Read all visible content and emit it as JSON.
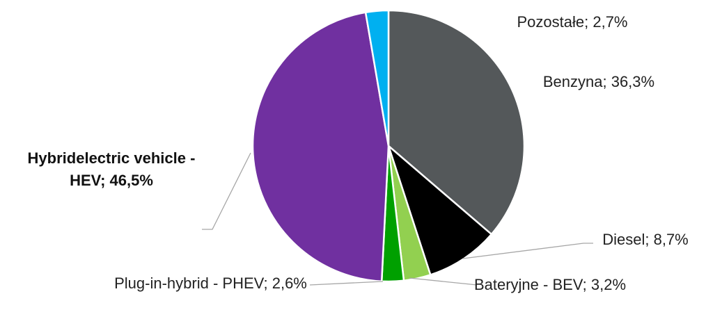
{
  "chart_data": {
    "type": "pie",
    "values": [
      36.3,
      8.7,
      3.2,
      2.6,
      46.5,
      2.7
    ],
    "value_labels": [
      "Benzyna; 36,3%",
      "Diesel; 8,7%",
      "Bateryjne - BEV; 3,2%",
      "Plug-in-hybrid - PHEV; 2,6%",
      "Hybridelectric vehicle - HEV; 46,5%",
      "Pozostałe; 2,7%"
    ],
    "colors": [
      "#54585a",
      "#000000",
      "#92d050",
      "#00a000",
      "#7030a0",
      "#00b0f0"
    ],
    "start_angle": 90,
    "direction": "clockwise"
  }
}
